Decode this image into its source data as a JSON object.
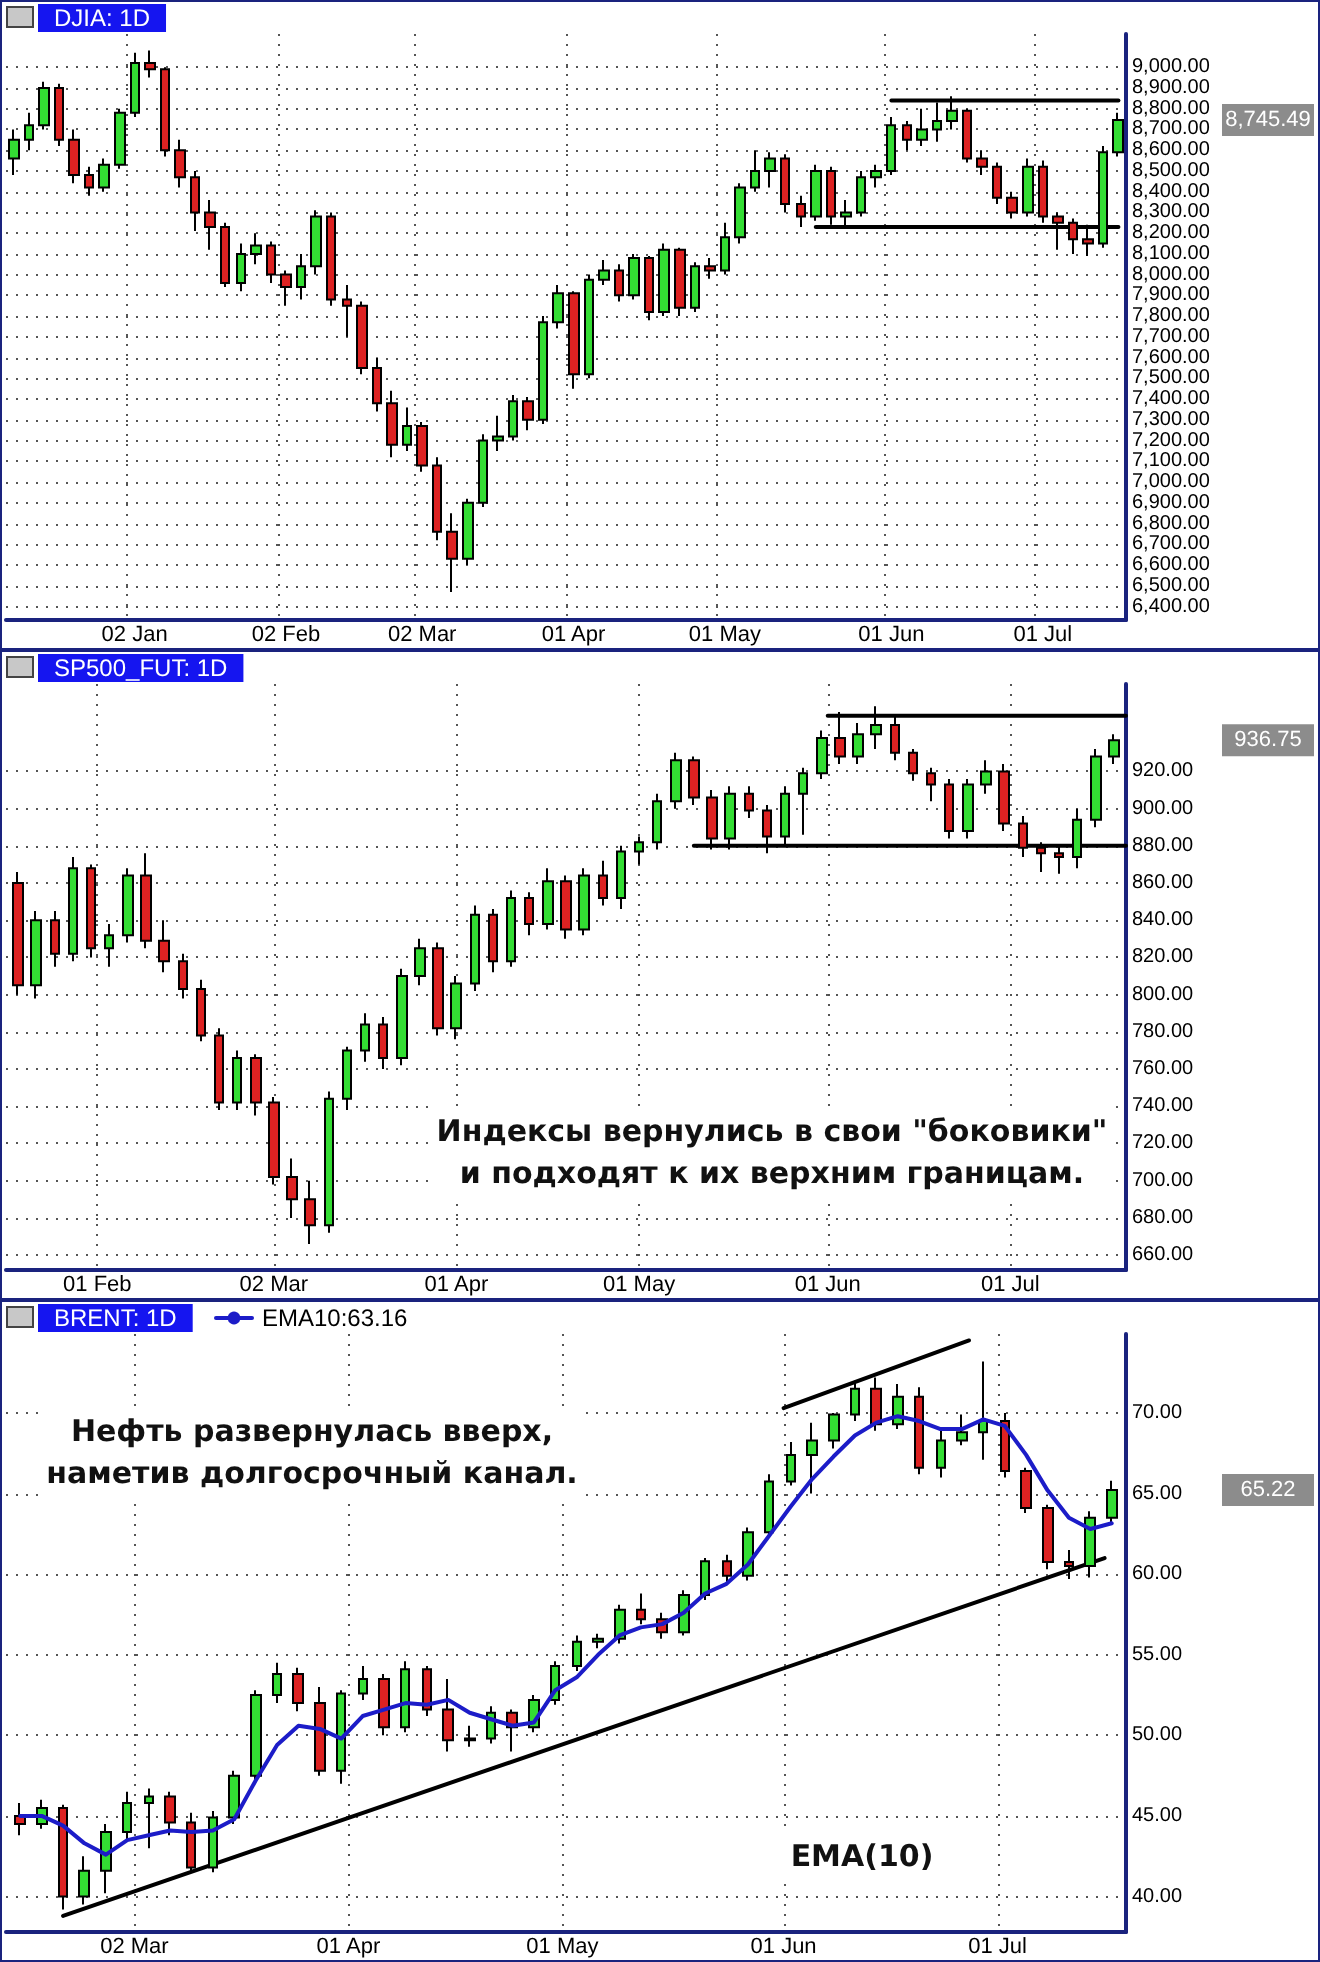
{
  "chart_data": [
    {
      "type": "candlestick",
      "title": "DJIA: 1D",
      "grid": true,
      "ylim": [
        6335,
        9160
      ],
      "yticks": [
        {
          "value": 6400,
          "label": "6,400.00"
        },
        {
          "value": 6500,
          "label": "6,500.00"
        },
        {
          "value": 6600,
          "label": "6,600.00"
        },
        {
          "value": 6700,
          "label": "6,700.00"
        },
        {
          "value": 6800,
          "label": "6,800.00"
        },
        {
          "value": 6900,
          "label": "6,900.00"
        },
        {
          "value": 7000,
          "label": "7,000.00"
        },
        {
          "value": 7100,
          "label": "7,100.00"
        },
        {
          "value": 7200,
          "label": "7,200.00"
        },
        {
          "value": 7300,
          "label": "7,300.00"
        },
        {
          "value": 7400,
          "label": "7,400.00"
        },
        {
          "value": 7500,
          "label": "7,500.00"
        },
        {
          "value": 7600,
          "label": "7,600.00"
        },
        {
          "value": 7700,
          "label": "7,700.00"
        },
        {
          "value": 7800,
          "label": "7,800.00"
        },
        {
          "value": 7900,
          "label": "7,900.00"
        },
        {
          "value": 8000,
          "label": "8,000.00"
        },
        {
          "value": 8100,
          "label": "8,100.00"
        },
        {
          "value": 8200,
          "label": "8,200.00"
        },
        {
          "value": 8300,
          "label": "8,300.00"
        },
        {
          "value": 8400,
          "label": "8,400.00"
        },
        {
          "value": 8500,
          "label": "8,500.00"
        },
        {
          "value": 8600,
          "label": "8,600.00"
        },
        {
          "value": 8700,
          "label": "8,700.00"
        },
        {
          "value": 8800,
          "label": "8,800.00"
        },
        {
          "value": 8900,
          "label": "8,900.00"
        },
        {
          "value": 9000,
          "label": "9,000.00"
        }
      ],
      "categories": [
        null,
        null,
        null,
        null,
        null,
        null,
        null,
        null,
        "02 Jan",
        null,
        null,
        null,
        null,
        null,
        null,
        null,
        null,
        null,
        "02 Feb",
        null,
        null,
        null,
        null,
        null,
        null,
        null,
        null,
        "02 Mar",
        null,
        null,
        null,
        null,
        null,
        null,
        null,
        null,
        null,
        "01 Apr",
        null,
        null,
        null,
        null,
        null,
        null,
        null,
        null,
        null,
        "01 May",
        null,
        null,
        null,
        null,
        null,
        null,
        null,
        null,
        null,
        null,
        "01 Jun",
        null,
        null,
        null,
        null,
        null,
        null,
        null,
        null,
        null,
        "01 Jul",
        null,
        null,
        null,
        null,
        null
      ],
      "ohlc": [
        [
          8560,
          8700,
          8480,
          8650
        ],
        [
          8650,
          8780,
          8600,
          8720
        ],
        [
          8720,
          8930,
          8700,
          8900
        ],
        [
          8900,
          8920,
          8620,
          8650
        ],
        [
          8650,
          8700,
          8440,
          8480
        ],
        [
          8480,
          8520,
          8380,
          8420
        ],
        [
          8420,
          8560,
          8400,
          8530
        ],
        [
          8530,
          8800,
          8510,
          8780
        ],
        [
          8780,
          9070,
          8760,
          9020
        ],
        [
          9020,
          9080,
          8950,
          8990
        ],
        [
          8990,
          9000,
          8570,
          8600
        ],
        [
          8600,
          8650,
          8420,
          8470
        ],
        [
          8470,
          8500,
          8210,
          8300
        ],
        [
          8300,
          8360,
          8120,
          8230
        ],
        [
          8230,
          8250,
          7940,
          7960
        ],
        [
          7960,
          8150,
          7920,
          8100
        ],
        [
          8100,
          8200,
          8050,
          8140
        ],
        [
          8140,
          8160,
          7960,
          8000
        ],
        [
          8000,
          8020,
          7850,
          7940
        ],
        [
          7940,
          8100,
          7880,
          8040
        ],
        [
          8040,
          8310,
          8000,
          8280
        ],
        [
          8280,
          8300,
          7850,
          7880
        ],
        [
          7880,
          7950,
          7700,
          7850
        ],
        [
          7850,
          7870,
          7520,
          7550
        ],
        [
          7550,
          7600,
          7340,
          7380
        ],
        [
          7380,
          7440,
          7120,
          7180
        ],
        [
          7180,
          7360,
          7150,
          7270
        ],
        [
          7270,
          7290,
          7050,
          7080
        ],
        [
          7080,
          7120,
          6720,
          6760
        ],
        [
          6760,
          6850,
          6470,
          6630
        ],
        [
          6630,
          6920,
          6600,
          6900
        ],
        [
          6900,
          7230,
          6880,
          7200
        ],
        [
          7200,
          7320,
          7150,
          7220
        ],
        [
          7220,
          7420,
          7200,
          7390
        ],
        [
          7390,
          7410,
          7250,
          7300
        ],
        [
          7300,
          7800,
          7280,
          7770
        ],
        [
          7770,
          7950,
          7740,
          7910
        ],
        [
          7910,
          7920,
          7450,
          7520
        ],
        [
          7520,
          8000,
          7500,
          7975
        ],
        [
          7975,
          8070,
          7950,
          8020
        ],
        [
          8020,
          8050,
          7870,
          7900
        ],
        [
          7900,
          8100,
          7880,
          8080
        ],
        [
          8080,
          8090,
          7780,
          7820
        ],
        [
          7820,
          8150,
          7800,
          8120
        ],
        [
          8120,
          8130,
          7800,
          7840
        ],
        [
          7840,
          8060,
          7820,
          8040
        ],
        [
          8040,
          8080,
          7980,
          8020
        ],
        [
          8020,
          8250,
          8000,
          8180
        ],
        [
          8180,
          8440,
          8150,
          8420
        ],
        [
          8420,
          8600,
          8400,
          8500
        ],
        [
          8500,
          8590,
          8420,
          8560
        ],
        [
          8560,
          8580,
          8300,
          8340
        ],
        [
          8340,
          8380,
          8230,
          8280
        ],
        [
          8280,
          8530,
          8260,
          8500
        ],
        [
          8500,
          8520,
          8240,
          8280
        ],
        [
          8280,
          8360,
          8230,
          8300
        ],
        [
          8300,
          8500,
          8280,
          8470
        ],
        [
          8470,
          8530,
          8420,
          8500
        ],
        [
          8500,
          8760,
          8480,
          8720
        ],
        [
          8720,
          8740,
          8600,
          8650
        ],
        [
          8650,
          8800,
          8620,
          8700
        ],
        [
          8700,
          8830,
          8640,
          8740
        ],
        [
          8740,
          8860,
          8700,
          8790
        ],
        [
          8790,
          8800,
          8540,
          8560
        ],
        [
          8560,
          8600,
          8480,
          8520
        ],
        [
          8520,
          8540,
          8340,
          8370
        ],
        [
          8370,
          8400,
          8270,
          8300
        ],
        [
          8300,
          8560,
          8280,
          8520
        ],
        [
          8520,
          8550,
          8250,
          8280
        ],
        [
          8280,
          8300,
          8120,
          8250
        ],
        [
          8250,
          8270,
          8100,
          8170
        ],
        [
          8170,
          8240,
          8090,
          8150
        ],
        [
          8150,
          8620,
          8130,
          8590
        ],
        [
          8590,
          8780,
          8570,
          8745.49
        ]
      ],
      "colors": [
        "#33dd33",
        "#33dd33",
        "#33dd33",
        "#dd2222",
        "#dd2222",
        "#dd2222",
        "#33dd33",
        "#33dd33",
        "#33dd33",
        "#dd2222",
        "#dd2222",
        "#dd2222",
        "#dd2222",
        "#dd2222",
        "#dd2222",
        "#33dd33",
        "#33dd33",
        "#dd2222",
        "#dd2222",
        "#33dd33",
        "#33dd33",
        "#dd2222",
        "#dd2222",
        "#dd2222",
        "#dd2222",
        "#dd2222",
        "#33dd33",
        "#dd2222",
        "#dd2222",
        "#dd2222",
        "#33dd33",
        "#33dd33",
        "#33dd33",
        "#33dd33",
        "#dd2222",
        "#33dd33",
        "#33dd33",
        "#dd2222",
        "#33dd33",
        "#33dd33",
        "#dd2222",
        "#33dd33",
        "#dd2222",
        "#33dd33",
        "#dd2222",
        "#33dd33",
        "#dd2222",
        "#33dd33",
        "#33dd33",
        "#33dd33",
        "#33dd33",
        "#dd2222",
        "#dd2222",
        "#33dd33",
        "#dd2222",
        "#33dd33",
        "#33dd33",
        "#33dd33",
        "#33dd33",
        "#dd2222",
        "#33dd33",
        "#33dd33",
        "#33dd33",
        "#dd2222",
        "#dd2222",
        "#dd2222",
        "#dd2222",
        "#33dd33",
        "#dd2222",
        "#dd2222",
        "#dd2222",
        "#dd2222",
        "#33dd33",
        "#33dd33"
      ],
      "series": [
        {
          "type": "line",
          "color": "#000000",
          "values": [
            null,
            null,
            null,
            null,
            null,
            null,
            null,
            null,
            null,
            null,
            null,
            null,
            null,
            null,
            null,
            null,
            null,
            null,
            null,
            null,
            null,
            null,
            null,
            null,
            null,
            null,
            null,
            null,
            null,
            null,
            null,
            null,
            null,
            null,
            null,
            null,
            null,
            null,
            null,
            null,
            null,
            null,
            null,
            null,
            null,
            null,
            null,
            null,
            null,
            null,
            null,
            null,
            null,
            null,
            null,
            null,
            null,
            null,
            8840,
            8840,
            8840,
            8840,
            8840,
            8840,
            8840,
            8840,
            8840,
            8840,
            8840,
            8840,
            8840,
            8840,
            8840,
            8840
          ]
        },
        {
          "type": "line",
          "color": "#000000",
          "values": [
            null,
            null,
            null,
            null,
            null,
            null,
            null,
            null,
            null,
            null,
            null,
            null,
            null,
            null,
            null,
            null,
            null,
            null,
            null,
            null,
            null,
            null,
            null,
            null,
            null,
            null,
            null,
            null,
            null,
            null,
            null,
            null,
            null,
            null,
            null,
            null,
            null,
            null,
            null,
            null,
            null,
            null,
            null,
            null,
            null,
            null,
            null,
            null,
            null,
            null,
            null,
            null,
            null,
            8230,
            8230,
            8230,
            8230,
            8230,
            8230,
            8230,
            8230,
            8230,
            8230,
            8230,
            8230,
            8230,
            8230,
            8230,
            8230,
            8230,
            8230,
            8230,
            8230,
            8230
          ]
        }
      ],
      "annotations": [
        "8,745.49"
      ]
    },
    {
      "type": "candlestick",
      "title": "SP500_FUT: 1D",
      "grid": true,
      "xlim": [
        "--01-17",
        "--07-20"
      ],
      "xticks": [
        {
          "value": "--02-01",
          "label": "01 Feb"
        },
        {
          "value": "--03-02",
          "label": "02 Mar"
        },
        {
          "value": "--04-01",
          "label": "01 Apr"
        },
        {
          "value": "--05-01",
          "label": "01 May"
        },
        {
          "value": "--06-01",
          "label": "01 Jun"
        },
        {
          "value": "--07-01",
          "label": "01 Jul"
        }
      ],
      "ylim": [
        652,
        967
      ],
      "yticks": [
        {
          "value": 660,
          "label": "660.00"
        },
        {
          "value": 680,
          "label": "680.00"
        },
        {
          "value": 700,
          "label": "700.00"
        },
        {
          "value": 720,
          "label": "720.00"
        },
        {
          "value": 740,
          "label": "740.00"
        },
        {
          "value": 760,
          "label": "760.00"
        },
        {
          "value": 780,
          "label": "780.00"
        },
        {
          "value": 800,
          "label": "800.00"
        },
        {
          "value": 820,
          "label": "820.00"
        },
        {
          "value": 840,
          "label": "840.00"
        },
        {
          "value": 860,
          "label": "860.00"
        },
        {
          "value": 880,
          "label": "880.00"
        },
        {
          "value": 900,
          "label": "900.00"
        },
        {
          "value": 920,
          "label": "920.00"
        }
      ],
      "x": [
        "--01-19",
        "--01-22",
        "--01-25",
        "--01-28",
        "--01-31",
        "--02-03",
        "--02-06",
        "--02-09",
        "--02-12",
        "--02-15",
        "--02-18",
        "--02-21",
        "--02-24",
        "--02-27",
        "--03-02",
        "--03-05",
        "--03-08",
        "--03-11",
        "--03-14",
        "--03-17",
        "--03-20",
        "--03-23",
        "--03-26",
        "--03-29",
        "--04-01",
        "--04-04",
        "--04-07",
        "--04-10",
        "--04-13",
        "--04-16",
        "--04-19",
        "--04-22",
        "--04-25",
        "--04-28",
        "--05-01",
        "--05-04",
        "--05-07",
        "--05-10",
        "--05-13",
        "--05-16",
        "--05-19",
        "--05-22",
        "--05-25",
        "--05-28",
        "--05-31",
        "--06-03",
        "--06-06",
        "--06-09",
        "--06-12",
        "--06-15",
        "--06-18",
        "--06-21",
        "--06-24",
        "--06-27",
        "--06-30",
        "--07-03",
        "--07-06",
        "--07-09",
        "--07-12",
        "--07-15",
        "--07-18"
      ],
      "ohlc": [
        [
          860,
          866,
          800,
          805
        ],
        [
          805,
          845,
          798,
          840
        ],
        [
          840,
          845,
          815,
          822
        ],
        [
          822,
          874,
          818,
          868
        ],
        [
          868,
          870,
          820,
          825
        ],
        [
          825,
          838,
          815,
          832
        ],
        [
          832,
          868,
          828,
          864
        ],
        [
          864,
          876,
          825,
          829
        ],
        [
          829,
          840,
          812,
          818
        ],
        [
          818,
          822,
          798,
          803
        ],
        [
          803,
          808,
          775,
          778
        ],
        [
          778,
          782,
          738,
          742
        ],
        [
          742,
          770,
          738,
          766
        ],
        [
          766,
          768,
          735,
          742
        ],
        [
          742,
          745,
          698,
          702
        ],
        [
          702,
          712,
          680,
          690
        ],
        [
          690,
          700,
          666,
          676
        ],
        [
          676,
          748,
          672,
          744
        ],
        [
          744,
          772,
          738,
          770
        ],
        [
          770,
          790,
          764,
          784
        ],
        [
          784,
          788,
          760,
          766
        ],
        [
          766,
          814,
          762,
          810
        ],
        [
          810,
          830,
          805,
          825
        ],
        [
          825,
          828,
          778,
          782
        ],
        [
          782,
          810,
          776,
          806
        ],
        [
          806,
          848,
          802,
          843
        ],
        [
          843,
          846,
          812,
          818
        ],
        [
          818,
          856,
          815,
          852
        ],
        [
          852,
          855,
          832,
          838
        ],
        [
          838,
          868,
          835,
          861
        ],
        [
          861,
          864,
          830,
          835
        ],
        [
          835,
          868,
          832,
          864
        ],
        [
          864,
          872,
          848,
          852
        ],
        [
          852,
          880,
          846,
          877
        ],
        [
          877,
          885,
          870,
          882
        ],
        [
          882,
          908,
          878,
          904
        ],
        [
          904,
          930,
          900,
          926
        ],
        [
          926,
          928,
          902,
          906
        ],
        [
          906,
          910,
          878,
          884
        ],
        [
          884,
          912,
          878,
          908
        ],
        [
          908,
          912,
          895,
          899
        ],
        [
          899,
          902,
          876,
          885
        ],
        [
          885,
          912,
          880,
          908
        ],
        [
          908,
          922,
          886,
          919
        ],
        [
          919,
          942,
          916,
          938
        ],
        [
          938,
          952,
          924,
          928
        ],
        [
          928,
          946,
          924,
          940
        ],
        [
          940,
          955,
          932,
          945
        ],
        [
          945,
          950,
          926,
          930
        ],
        [
          930,
          932,
          915,
          919
        ],
        [
          919,
          922,
          904,
          913
        ],
        [
          913,
          916,
          884,
          888
        ],
        [
          888,
          916,
          884,
          913
        ],
        [
          913,
          926,
          908,
          920
        ],
        [
          920,
          924,
          888,
          892
        ],
        [
          892,
          896,
          874,
          879
        ],
        [
          879,
          882,
          866,
          876
        ],
        [
          876,
          880,
          865,
          874
        ],
        [
          874,
          900,
          868,
          894
        ],
        [
          894,
          932,
          890,
          928
        ],
        [
          928,
          940,
          924,
          936.75
        ]
      ],
      "colors": [
        "#dd2222",
        "#33dd33",
        "#dd2222",
        "#33dd33",
        "#dd2222",
        "#33dd33",
        "#33dd33",
        "#dd2222",
        "#dd2222",
        "#dd2222",
        "#dd2222",
        "#dd2222",
        "#33dd33",
        "#dd2222",
        "#dd2222",
        "#dd2222",
        "#dd2222",
        "#33dd33",
        "#33dd33",
        "#33dd33",
        "#dd2222",
        "#33dd33",
        "#33dd33",
        "#dd2222",
        "#33dd33",
        "#33dd33",
        "#dd2222",
        "#33dd33",
        "#dd2222",
        "#33dd33",
        "#dd2222",
        "#33dd33",
        "#dd2222",
        "#33dd33",
        "#33dd33",
        "#33dd33",
        "#33dd33",
        "#dd2222",
        "#dd2222",
        "#33dd33",
        "#dd2222",
        "#dd2222",
        "#33dd33",
        "#33dd33",
        "#33dd33",
        "#dd2222",
        "#33dd33",
        "#33dd33",
        "#dd2222",
        "#dd2222",
        "#dd2222",
        "#dd2222",
        "#33dd33",
        "#33dd33",
        "#dd2222",
        "#dd2222",
        "#dd2222",
        "#dd2222",
        "#33dd33",
        "#33dd33",
        "#33dd33"
      ],
      "series": [
        {
          "type": "line",
          "color": "#000000",
          "x": [
            "--06-01",
            "--07-20"
          ],
          "values": [
            950,
            950
          ]
        },
        {
          "type": "line",
          "color": "#000000",
          "x": [
            "--05-10",
            "--07-20"
          ],
          "values": [
            880,
            880
          ]
        }
      ],
      "annotations": [
        "936.75",
        "Индексы вернулись в свои \"боковики\"\nи подходят к их верхним границам."
      ]
    },
    {
      "type": "candlestick",
      "title": "BRENT: 1D",
      "grid": true,
      "legend": "top left",
      "xlim": [
        "--02-12",
        "--07-19"
      ],
      "xticks": [
        {
          "value": "--03-02",
          "label": "02 Mar"
        },
        {
          "value": "--04-01",
          "label": "01 Apr"
        },
        {
          "value": "--05-01",
          "label": "01 May"
        },
        {
          "value": "--06-01",
          "label": "01 Jun"
        },
        {
          "value": "--07-01",
          "label": "01 Jul"
        }
      ],
      "ylim": [
        37.8,
        74.9
      ],
      "yticks": [
        {
          "value": 40,
          "label": "40.00"
        },
        {
          "value": 45,
          "label": "45.00"
        },
        {
          "value": 50,
          "label": "50.00"
        },
        {
          "value": 55,
          "label": "55.00"
        },
        {
          "value": 60,
          "label": "60.00"
        },
        {
          "value": 65,
          "label": "65.00"
        },
        {
          "value": 70,
          "label": "70.00"
        }
      ],
      "x": [
        "--02-14",
        "--02-17",
        "--02-20",
        "--02-23",
        "--02-26",
        "--03-01",
        "--03-04",
        "--03-07",
        "--03-10",
        "--03-13",
        "--03-16",
        "--03-19",
        "--03-22",
        "--03-25",
        "--03-28",
        "--03-31",
        "--04-03",
        "--04-06",
        "--04-09",
        "--04-12",
        "--04-15",
        "--04-18",
        "--04-21",
        "--04-24",
        "--04-27",
        "--04-30",
        "--05-03",
        "--05-06",
        "--05-09",
        "--05-12",
        "--05-15",
        "--05-18",
        "--05-21",
        "--05-24",
        "--05-27",
        "--05-30",
        "--06-02",
        "--06-05",
        "--06-08",
        "--06-11",
        "--06-14",
        "--06-17",
        "--06-20",
        "--06-23",
        "--06-26",
        "--06-29",
        "--07-02",
        "--07-05",
        "--07-08",
        "--07-11",
        "--07-14",
        "--07-17"
      ],
      "ohlc": [
        [
          45.0,
          45.8,
          43.8,
          44.5
        ],
        [
          44.5,
          46.0,
          44.2,
          45.5
        ],
        [
          45.5,
          45.7,
          39.2,
          40.0
        ],
        [
          40.0,
          42.5,
          39.5,
          41.6
        ],
        [
          41.6,
          44.5,
          40.2,
          44.0
        ],
        [
          44.0,
          46.5,
          43.5,
          45.8
        ],
        [
          45.8,
          46.7,
          43.0,
          46.2
        ],
        [
          46.2,
          46.5,
          43.8,
          44.6
        ],
        [
          44.6,
          45.2,
          41.5,
          41.8
        ],
        [
          41.8,
          45.3,
          41.5,
          44.9
        ],
        [
          44.9,
          47.8,
          44.5,
          47.5
        ],
        [
          47.5,
          52.8,
          47.2,
          52.5
        ],
        [
          52.5,
          54.5,
          52.0,
          53.8
        ],
        [
          53.8,
          54.2,
          51.5,
          52.0
        ],
        [
          52.0,
          53.0,
          47.5,
          47.8
        ],
        [
          47.8,
          52.8,
          47.0,
          52.6
        ],
        [
          52.6,
          54.3,
          52.2,
          53.5
        ],
        [
          53.5,
          53.8,
          50.0,
          50.5
        ],
        [
          50.5,
          54.6,
          50.2,
          54.1
        ],
        [
          54.1,
          54.3,
          51.2,
          51.6
        ],
        [
          51.6,
          53.5,
          49.0,
          49.7
        ],
        [
          49.7,
          50.6,
          49.3,
          49.8
        ],
        [
          49.8,
          51.8,
          49.5,
          51.4
        ],
        [
          51.4,
          51.6,
          49.0,
          50.5
        ],
        [
          50.5,
          52.5,
          50.2,
          52.2
        ],
        [
          52.2,
          54.6,
          51.9,
          54.3
        ],
        [
          54.3,
          56.2,
          54.0,
          55.8
        ],
        [
          55.8,
          56.3,
          55.4,
          56.0
        ],
        [
          56.0,
          58.1,
          55.7,
          57.8
        ],
        [
          57.8,
          58.8,
          56.9,
          57.2
        ],
        [
          57.2,
          57.6,
          56.0,
          56.4
        ],
        [
          56.4,
          59.0,
          56.2,
          58.7
        ],
        [
          58.7,
          61.0,
          58.4,
          60.8
        ],
        [
          60.8,
          61.2,
          59.5,
          59.9
        ],
        [
          59.9,
          62.9,
          59.6,
          62.6
        ],
        [
          62.6,
          66.2,
          62.3,
          65.75
        ],
        [
          65.75,
          68.2,
          65.5,
          67.4
        ],
        [
          67.4,
          69.4,
          65.0,
          68.3
        ],
        [
          68.3,
          70.0,
          67.8,
          69.9
        ],
        [
          69.9,
          72.0,
          69.5,
          71.5
        ],
        [
          71.5,
          72.2,
          68.9,
          69.3
        ],
        [
          69.3,
          71.8,
          69.0,
          71.0
        ],
        [
          71.0,
          71.6,
          66.2,
          66.6
        ],
        [
          66.6,
          69.0,
          66.0,
          68.3
        ],
        [
          68.3,
          69.9,
          68.0,
          68.8
        ],
        [
          68.8,
          73.2,
          67.1,
          69.5
        ],
        [
          69.5,
          70.0,
          66.0,
          66.4
        ],
        [
          66.4,
          66.6,
          63.8,
          64.1
        ],
        [
          64.1,
          64.3,
          60.3,
          60.75
        ],
        [
          60.75,
          61.5,
          59.7,
          60.5
        ],
        [
          60.5,
          63.9,
          59.8,
          63.5
        ],
        [
          63.5,
          65.8,
          63.2,
          65.22
        ]
      ],
      "colors": [
        "#dd2222",
        "#33dd33",
        "#dd2222",
        "#33dd33",
        "#33dd33",
        "#33dd33",
        "#33dd33",
        "#dd2222",
        "#dd2222",
        "#33dd33",
        "#33dd33",
        "#33dd33",
        "#33dd33",
        "#dd2222",
        "#dd2222",
        "#33dd33",
        "#33dd33",
        "#dd2222",
        "#33dd33",
        "#dd2222",
        "#dd2222",
        "#33dd33",
        "#33dd33",
        "#dd2222",
        "#33dd33",
        "#33dd33",
        "#33dd33",
        "#33dd33",
        "#33dd33",
        "#dd2222",
        "#dd2222",
        "#33dd33",
        "#33dd33",
        "#dd2222",
        "#33dd33",
        "#33dd33",
        "#33dd33",
        "#33dd33",
        "#33dd33",
        "#33dd33",
        "#dd2222",
        "#33dd33",
        "#dd2222",
        "#33dd33",
        "#33dd33",
        "#33dd33",
        "#dd2222",
        "#dd2222",
        "#dd2222",
        "#dd2222",
        "#33dd33",
        "#33dd33"
      ],
      "series": [
        {
          "type": "line",
          "name": "EMA10:63.16",
          "color": "#1c1cc8",
          "x": [
            "--02-14",
            "--02-17",
            "--02-20",
            "--02-23",
            "--02-26",
            "--03-01",
            "--03-04",
            "--03-07",
            "--03-10",
            "--03-13",
            "--03-16",
            "--03-19",
            "--03-22",
            "--03-25",
            "--03-28",
            "--03-31",
            "--04-03",
            "--04-06",
            "--04-09",
            "--04-12",
            "--04-15",
            "--04-18",
            "--04-21",
            "--04-24",
            "--04-27",
            "--04-30",
            "--05-03",
            "--05-06",
            "--05-09",
            "--05-12",
            "--05-15",
            "--05-18",
            "--05-21",
            "--05-24",
            "--05-27",
            "--05-30",
            "--06-02",
            "--06-05",
            "--06-08",
            "--06-11",
            "--06-14",
            "--06-17",
            "--06-20",
            "--06-23",
            "--06-26",
            "--06-29",
            "--07-02",
            "--07-05",
            "--07-08",
            "--07-11",
            "--07-14",
            "--07-17"
          ],
          "values": [
            45.0,
            45.0,
            44.4,
            43.3,
            42.6,
            43.5,
            43.8,
            44.1,
            44.0,
            44.1,
            44.8,
            47.2,
            49.4,
            50.6,
            50.4,
            49.8,
            51.2,
            51.6,
            52.0,
            51.9,
            52.2,
            51.4,
            51.0,
            50.6,
            50.8,
            52.8,
            53.6,
            55.0,
            56.2,
            56.7,
            56.9,
            57.6,
            58.8,
            59.4,
            60.6,
            62.4,
            64.2,
            65.9,
            67.3,
            68.6,
            69.4,
            69.8,
            69.5,
            69.0,
            69.0,
            69.6,
            69.2,
            67.4,
            65.2,
            63.5,
            62.8,
            63.16
          ]
        },
        {
          "type": "line",
          "color": "#000000",
          "x": [
            "--02-20",
            "--07-16"
          ],
          "values": [
            38.8,
            61.0
          ]
        },
        {
          "type": "line",
          "color": "#000000",
          "x": [
            "--06-01",
            "--06-27"
          ],
          "values": [
            70.3,
            74.5
          ]
        }
      ],
      "annotations": [
        "65.22",
        "Нефть развернулась вверх,\nнаметив долгосрочный канал.",
        "EMA(10)"
      ]
    }
  ]
}
